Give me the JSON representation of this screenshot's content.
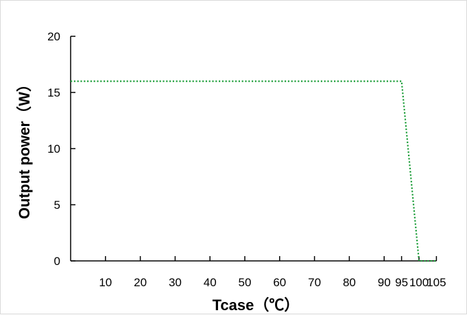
{
  "chart_data": {
    "type": "line",
    "title": "",
    "xlabel": "Tcase（℃）",
    "ylabel": "Output power（W）",
    "x_ticks": [
      10,
      20,
      30,
      40,
      50,
      60,
      70,
      80,
      90,
      95,
      100,
      105
    ],
    "x_tick_labels": [
      "10",
      "20",
      "30",
      "40",
      "50",
      "60",
      "70",
      "80",
      "90",
      "95",
      "100",
      "105"
    ],
    "y_ticks": [
      0,
      5,
      10,
      15,
      20
    ],
    "y_tick_labels": [
      "0",
      "5",
      "10",
      "15",
      "20"
    ],
    "ylim": [
      0,
      20
    ],
    "grid": false,
    "legend": "none",
    "series": [
      {
        "color": "#1e9e3a",
        "line_style": "dotted",
        "points": [
          {
            "x": 0,
            "y": 16
          },
          {
            "x": 95,
            "y": 16
          },
          {
            "x": 100,
            "y": 0
          },
          {
            "x": 105,
            "y": 0
          }
        ]
      }
    ]
  }
}
